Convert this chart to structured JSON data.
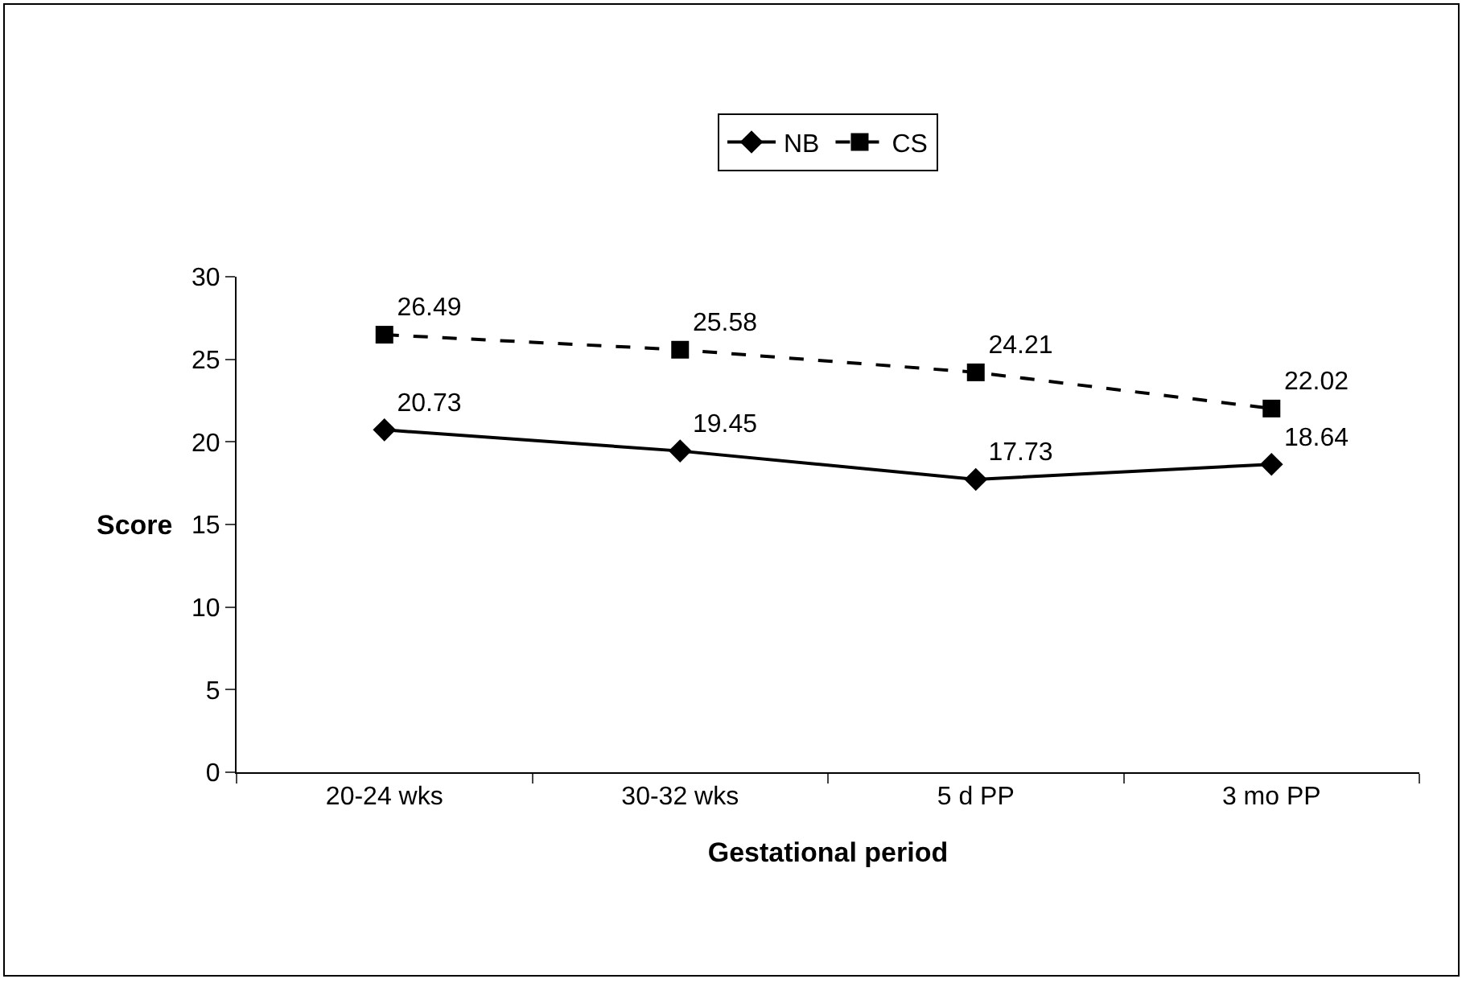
{
  "chart_data": {
    "type": "line",
    "xlabel": "Gestational period",
    "ylabel": "Score",
    "categories": [
      "20-24 wks",
      "30-32 wks",
      "5 d PP",
      "3 mo PP"
    ],
    "series": [
      {
        "name": "NB",
        "color": "#000000",
        "values": [
          20.73,
          19.45,
          17.73,
          18.64
        ],
        "marker": "diamond",
        "line_style": "solid"
      },
      {
        "name": "CS",
        "color": "#000000",
        "values": [
          26.49,
          25.58,
          24.21,
          22.02
        ],
        "marker": "square",
        "line_style": "dashed"
      }
    ],
    "ylim": [
      0,
      30
    ],
    "yticks": [
      0,
      5,
      10,
      15,
      20,
      25,
      30
    ],
    "grid": false,
    "legend": "top",
    "data_labels": true
  }
}
